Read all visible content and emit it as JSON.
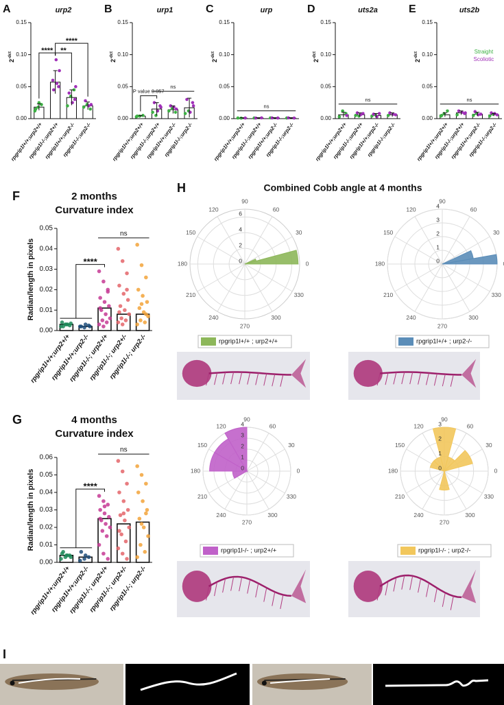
{
  "chart_data": [
    {
      "type": "bar",
      "panel": "A",
      "title": "urp2",
      "ylabel": "2",
      "ylabel_sup": "-dct",
      "categories": [
        "rpgrip1l+/+;urp2+/+",
        "rpgrip1l-/-;urp2+/+",
        "rpgrip1l+/+;urp2-/-",
        "rpgrip1l-/-;urp2-/-"
      ],
      "values": [
        0.018,
        0.057,
        0.033,
        0.02
      ],
      "errors": [
        0.005,
        0.018,
        0.012,
        0.006
      ],
      "dot_series": [
        {
          "color": "#3cb043",
          "values": [
            [
              0.012,
              0.018,
              0.022,
              0.015,
              0.025
            ],
            [],
            [
              0.02,
              0.035,
              0.045
            ],
            [
              0.018,
              0.022,
              0.015
            ]
          ]
        },
        {
          "color": "#a030b8",
          "values": [
            [],
            [
              0.05,
              0.06,
              0.092,
              0.075,
              0.045,
              0.055
            ],
            [
              0.03,
              0.04,
              0.025,
              0.05
            ],
            [
              0.022,
              0.028,
              0.02
            ]
          ]
        }
      ],
      "ylim": [
        0,
        0.15
      ],
      "yticks": [
        {
          "value": 0,
          "label": "0.00"
        },
        {
          "value": 0.05,
          "label": "0.05"
        },
        {
          "value": 0.1,
          "label": "0.10"
        },
        {
          "value": 0.15,
          "label": "0.15"
        }
      ],
      "brackets": [
        {
          "text": "****",
          "from": [
            0,
            0
          ],
          "to": [
            1,
            1
          ]
        },
        {
          "text": "**",
          "from": [
            1,
            1
          ],
          "to": [
            2,
            2
          ]
        },
        {
          "text": "****",
          "from": [
            1,
            1
          ],
          "to": [
            3,
            3
          ]
        }
      ]
    },
    {
      "type": "bar",
      "panel": "B",
      "title": "urp1",
      "ylabel": "2",
      "ylabel_sup": "-dct",
      "categories": [
        "rpgrip1l+/+;urp2+/+",
        "rpgrip1l-/-;urp2+/+",
        "rpgrip1l+/+;urp2-/-",
        "rpgrip1l-/-;urp2-/-"
      ],
      "values": [
        0.004,
        0.015,
        0.014,
        0.017
      ],
      "errors": [
        0.001,
        0.01,
        0.006,
        0.015
      ],
      "dot_series": [
        {
          "color": "#3cb043",
          "values": [
            [
              0.003,
              0.004,
              0.005,
              0.004
            ],
            [
              0.01,
              0.005
            ],
            [
              0.012,
              0.016,
              0.01
            ],
            [
              0.008,
              0.012
            ]
          ]
        },
        {
          "color": "#a030b8",
          "values": [
            [],
            [
              0.02,
              0.025,
              0.012,
              0.018
            ],
            [
              0.015,
              0.02,
              0.018
            ],
            [
              0.025,
              0.03,
              0.01,
              0.02
            ]
          ]
        }
      ],
      "ylim": [
        0,
        0.15
      ],
      "yticks": [
        {
          "value": 0,
          "label": "0.00"
        },
        {
          "value": 0.05,
          "label": "0.05"
        },
        {
          "value": 0.1,
          "label": "0.10"
        },
        {
          "value": 0.15,
          "label": "0.15"
        }
      ],
      "brackets": [
        {
          "text": "P value 0.057",
          "from": [
            0,
            0
          ],
          "to": [
            1,
            1
          ]
        },
        {
          "text": "ns",
          "from": [
            1,
            3
          ]
        }
      ]
    },
    {
      "type": "bar",
      "panel": "C",
      "title": "urp",
      "ylabel": "2",
      "ylabel_sup": "-dct",
      "categories": [
        "rpgrip1l+/+;urp2+/+",
        "rpgrip1l-/-;urp2+/+",
        "rpgrip1l+/+;urp2-/-",
        "rpgrip1l-/-;urp2-/-"
      ],
      "values": [
        0.001,
        0.001,
        0.001,
        0.001
      ],
      "errors": [
        0.0005,
        0.0005,
        0.0005,
        0.0005
      ],
      "dot_series": [
        {
          "color": "#3cb043",
          "values": [
            [
              0.001,
              0.0008
            ],
            [
              0.001
            ],
            [
              0.0012
            ],
            [
              0.001
            ]
          ]
        },
        {
          "color": "#a030b8",
          "values": [
            [
              0.001
            ],
            [
              0.0012,
              0.0009
            ],
            [
              0.001,
              0.0011
            ],
            [
              0.0009,
              0.0012
            ]
          ]
        }
      ],
      "ylim": [
        0,
        0.15
      ],
      "yticks": [
        {
          "value": 0,
          "label": "0.00"
        },
        {
          "value": 0.05,
          "label": "0.05"
        },
        {
          "value": 0.1,
          "label": "0.10"
        },
        {
          "value": 0.15,
          "label": "0.15"
        }
      ],
      "brackets": [
        {
          "text": "ns",
          "from": [
            0,
            3
          ]
        }
      ]
    },
    {
      "type": "bar",
      "panel": "D",
      "title": "uts2a",
      "ylabel": "2",
      "ylabel_sup": "-dct",
      "categories": [
        "rpgrip1l+/+;urp2+/+",
        "rpgrip1l-/-;urp2+/+",
        "rpgrip1l+/+;urp2-/-",
        "rpgrip1l-/-;urp2-/-"
      ],
      "values": [
        0.006,
        0.006,
        0.005,
        0.006
      ],
      "errors": [
        0.004,
        0.003,
        0.003,
        0.003
      ],
      "dot_series": [
        {
          "color": "#3cb043",
          "values": [
            [
              0.003,
              0.012,
              0.008
            ],
            [
              0.005,
              0.004
            ],
            [
              0.004,
              0.006
            ],
            [
              0.005
            ]
          ]
        },
        {
          "color": "#a030b8",
          "values": [
            [
              0.005
            ],
            [
              0.008,
              0.009,
              0.006
            ],
            [
              0.008,
              0.007,
              0.003
            ],
            [
              0.006,
              0.009,
              0.007
            ]
          ]
        }
      ],
      "ylim": [
        0,
        0.15
      ],
      "yticks": [
        {
          "value": 0,
          "label": "0.00"
        },
        {
          "value": 0.05,
          "label": "0.05"
        },
        {
          "value": 0.1,
          "label": "0.10"
        },
        {
          "value": 0.15,
          "label": "0.15"
        }
      ],
      "brackets": [
        {
          "text": "ns",
          "from": [
            0,
            3
          ]
        }
      ]
    },
    {
      "type": "bar",
      "panel": "E",
      "title": "uts2b",
      "ylabel": "2",
      "ylabel_sup": "-dct",
      "categories": [
        "rpgrip1l+/+;urp2+/+",
        "rpgrip1l-/-;urp2+/+",
        "rpgrip1l+/+;urp2-/-",
        "rpgrip1l-/-;urp2-/-"
      ],
      "values": [
        0.006,
        0.009,
        0.007,
        0.006
      ],
      "errors": [
        0.003,
        0.003,
        0.003,
        0.002
      ],
      "dot_series": [
        {
          "color": "#3cb043",
          "values": [
            [
              0.004,
              0.008,
              0.012,
              0.005
            ],
            [
              0.006
            ],
            [
              0.005,
              0.008
            ],
            [
              0.004,
              0.007
            ]
          ]
        },
        {
          "color": "#a030b8",
          "values": [
            [],
            [
              0.008,
              0.012,
              0.01,
              0.009
            ],
            [
              0.007,
              0.011,
              0.006
            ],
            [
              0.006,
              0.009,
              0.008
            ]
          ]
        }
      ],
      "ylim": [
        0,
        0.15
      ],
      "yticks": [
        {
          "value": 0,
          "label": "0.00"
        },
        {
          "value": 0.05,
          "label": "0.05"
        },
        {
          "value": 0.1,
          "label": "0.10"
        },
        {
          "value": 0.15,
          "label": "0.15"
        }
      ],
      "brackets": [
        {
          "text": "ns",
          "from": [
            0,
            3
          ]
        }
      ],
      "legend": [
        {
          "name": "Straight",
          "color": "#3cb043"
        },
        {
          "name": "Scoliotic",
          "color": "#a030b8"
        }
      ]
    },
    {
      "type": "bar",
      "panel": "F",
      "title": "2 months",
      "subtitle": "Curvature index",
      "ylabel": "Radian/length in pixels",
      "categories": [
        "rpgrip1l+/+;urp2+/+",
        "rpgrip1l+/+;urp2-/-",
        "rpgrip1l-/-; urp2+/+",
        "rpgrip1l-/-; urp2+/-",
        "rpgrip1l-/-; urp2-/-"
      ],
      "values": [
        0.003,
        0.002,
        0.011,
        0.008,
        0.008
      ],
      "colors": [
        "#1e8a5a",
        "#1f4e7a",
        "#c53a94",
        "#e4656a",
        "#f2a33a"
      ],
      "points": [
        [
          0.002,
          0.003,
          0.0025,
          0.004,
          0.003,
          0.0035,
          0.002,
          0.003
        ],
        [
          0.002,
          0.0015,
          0.0025,
          0.002,
          0.003,
          0.002
        ],
        [
          0.029,
          0.024,
          0.02,
          0.016,
          0.014,
          0.012,
          0.01,
          0.008,
          0.006,
          0.005,
          0.004,
          0.003,
          0.002,
          0.019,
          0.011
        ],
        [
          0.04,
          0.034,
          0.028,
          0.022,
          0.018,
          0.015,
          0.012,
          0.01,
          0.008,
          0.006,
          0.005,
          0.004,
          0.003,
          0.02,
          0.009
        ],
        [
          0.042,
          0.032,
          0.026,
          0.02,
          0.017,
          0.014,
          0.011,
          0.009,
          0.007,
          0.005,
          0.004,
          0.003,
          0.013,
          0.008
        ]
      ],
      "ylim": [
        0,
        0.05
      ],
      "yticks": [
        {
          "value": 0,
          "label": "0.00"
        },
        {
          "value": 0.01,
          "label": "0.01"
        },
        {
          "value": 0.02,
          "label": "0.02"
        },
        {
          "value": 0.03,
          "label": "0.03"
        },
        {
          "value": 0.04,
          "label": "0.04"
        },
        {
          "value": 0.05,
          "label": "0.05"
        }
      ],
      "brackets": [
        {
          "text": "****",
          "from": [
            0,
            1
          ],
          "to": [
            2,
            2
          ]
        },
        {
          "text": "ns",
          "from": [
            2,
            4
          ]
        }
      ]
    },
    {
      "type": "bar",
      "panel": "G",
      "title": "4 months",
      "subtitle": "Curvature index",
      "ylabel": "Radian/length in pixels",
      "categories": [
        "rpgrip1l+/+;urp2+/+",
        "rpgrip1l+/+;urp2-/-",
        "rpgrip1l-/-; urp2+/+",
        "rpgrip1l-/-; urp2+/-",
        "rpgrip1l-/-; urp2-/-"
      ],
      "values": [
        0.004,
        0.003,
        0.025,
        0.022,
        0.023
      ],
      "colors": [
        "#1e8a5a",
        "#1f4e7a",
        "#c53a94",
        "#e4656a",
        "#f2a33a"
      ],
      "points": [
        [
          0.002,
          0.003,
          0.004,
          0.005,
          0.004,
          0.003,
          0.006,
          0.004
        ],
        [
          0.001,
          0.002,
          0.003,
          0.006,
          0.004
        ],
        [
          0.038,
          0.035,
          0.033,
          0.03,
          0.028,
          0.026,
          0.024,
          0.022,
          0.02,
          0.018,
          0.015,
          0.01,
          0.005,
          0.002,
          0.025,
          0.032
        ],
        [
          0.058,
          0.052,
          0.045,
          0.04,
          0.035,
          0.03,
          0.027,
          0.024,
          0.02,
          0.016,
          0.012,
          0.008,
          0.005,
          0.002,
          0.018,
          0.028
        ],
        [
          0.055,
          0.05,
          0.045,
          0.04,
          0.035,
          0.03,
          0.025,
          0.02,
          0.015,
          0.01,
          0.006,
          0.003,
          0.022,
          0.028
        ]
      ],
      "ylim": [
        0,
        0.06
      ],
      "yticks": [
        {
          "value": 0,
          "label": "0.00"
        },
        {
          "value": 0.01,
          "label": "0.01"
        },
        {
          "value": 0.02,
          "label": "0.02"
        },
        {
          "value": 0.03,
          "label": "0.03"
        },
        {
          "value": 0.04,
          "label": "0.04"
        },
        {
          "value": 0.05,
          "label": "0.05"
        },
        {
          "value": 0.06,
          "label": "0.06"
        }
      ],
      "brackets": [
        {
          "text": "****",
          "from": [
            0,
            1
          ],
          "to": [
            2,
            2
          ]
        },
        {
          "text": "ns",
          "from": [
            2,
            4
          ]
        }
      ]
    },
    {
      "type": "polar_bar",
      "bin_edges": [
        0,
        15,
        25
      ],
      "values": [
        6.8,
        1.5
      ],
      "color": "#8db75a",
      "rlim": [
        0,
        7
      ],
      "rticks": [
        0,
        2,
        4,
        6
      ],
      "thetaticks": [
        0,
        30,
        60,
        90,
        120,
        150,
        180,
        210,
        240,
        270,
        300,
        330
      ],
      "legend": "rpgrip1l+/+ ; urp2+/+"
    },
    {
      "type": "polar_bar",
      "bin_edges": [
        0,
        10,
        25
      ],
      "values": [
        4,
        2.3
      ],
      "color": "#5b8db8",
      "rlim": [
        0,
        4
      ],
      "rticks": [
        0,
        1,
        2,
        3,
        4
      ],
      "thetaticks": [
        0,
        30,
        60,
        90,
        120,
        150,
        180,
        210,
        240,
        270,
        300,
        330
      ],
      "legend": "rpgrip1l+/+ ; urp2-/-"
    },
    {
      "type": "polar_bar",
      "bin_edges": [
        90,
        120,
        150,
        180,
        210
      ],
      "values": [
        4,
        3.4,
        3.4,
        1.3
      ],
      "color": "#c061c9",
      "rlim": [
        0,
        4
      ],
      "rticks": [
        0,
        1,
        2,
        3,
        4
      ],
      "thetaticks": [
        0,
        30,
        60,
        90,
        120,
        150,
        180,
        210,
        240,
        270,
        300,
        330
      ],
      "legend": "rpgrip1l-/- ; urp2+/+"
    },
    {
      "type": "polar_bar",
      "bin_edges": [
        15,
        45,
        75,
        105,
        135,
        165,
        195,
        225,
        255,
        285
      ],
      "values": [
        2,
        1,
        3,
        1,
        1,
        0,
        0,
        0,
        1.3
      ],
      "color": "#f2c75c",
      "rlim": [
        0,
        3
      ],
      "rticks": [
        0,
        1,
        2,
        3
      ],
      "thetaticks": [
        0,
        30,
        60,
        90,
        120,
        150,
        180,
        210,
        240,
        270,
        300,
        330
      ],
      "legend": "rpgrip1l-/- ; urp2-/-"
    }
  ],
  "panel_h": {
    "label": "H",
    "title": "Combined Cobb angle at 4 months"
  },
  "panel_i": {
    "label": "I"
  }
}
